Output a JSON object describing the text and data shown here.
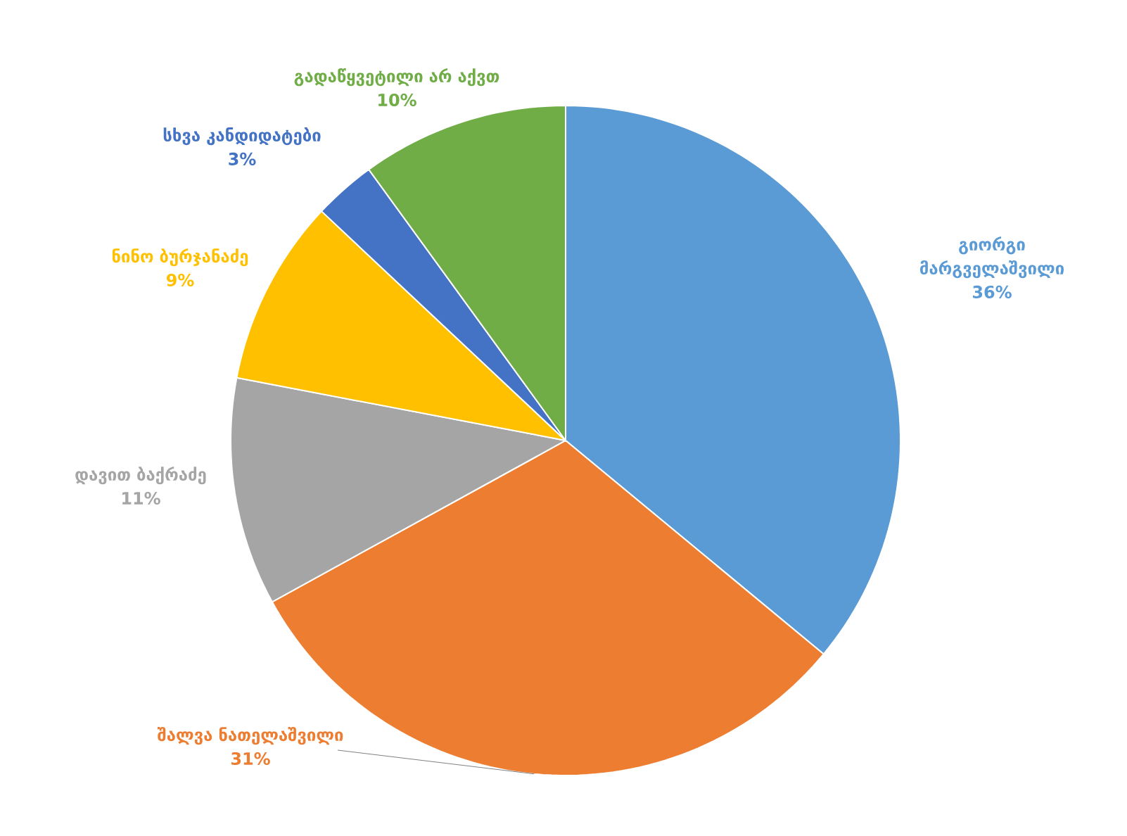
{
  "chart_data": {
    "type": "pie",
    "categories": [
      "გიორგი მარგველაშვილი",
      "შალვა ნათელაშვილი",
      "დავით ბაქრაძე",
      "ნინო ბურჯანაძე",
      "სხვა კანდიდატები",
      "გადაწყვეტილი არ აქვთ"
    ],
    "values": [
      36,
      31,
      11,
      9,
      3,
      10
    ],
    "colors": [
      "#5b9bd5",
      "#ed7d31",
      "#a5a5a5",
      "#ffc000",
      "#4472c4",
      "#70ad47"
    ],
    "value_labels": [
      "36%",
      "31%",
      "11%",
      "9%",
      "3%",
      "10%"
    ]
  }
}
